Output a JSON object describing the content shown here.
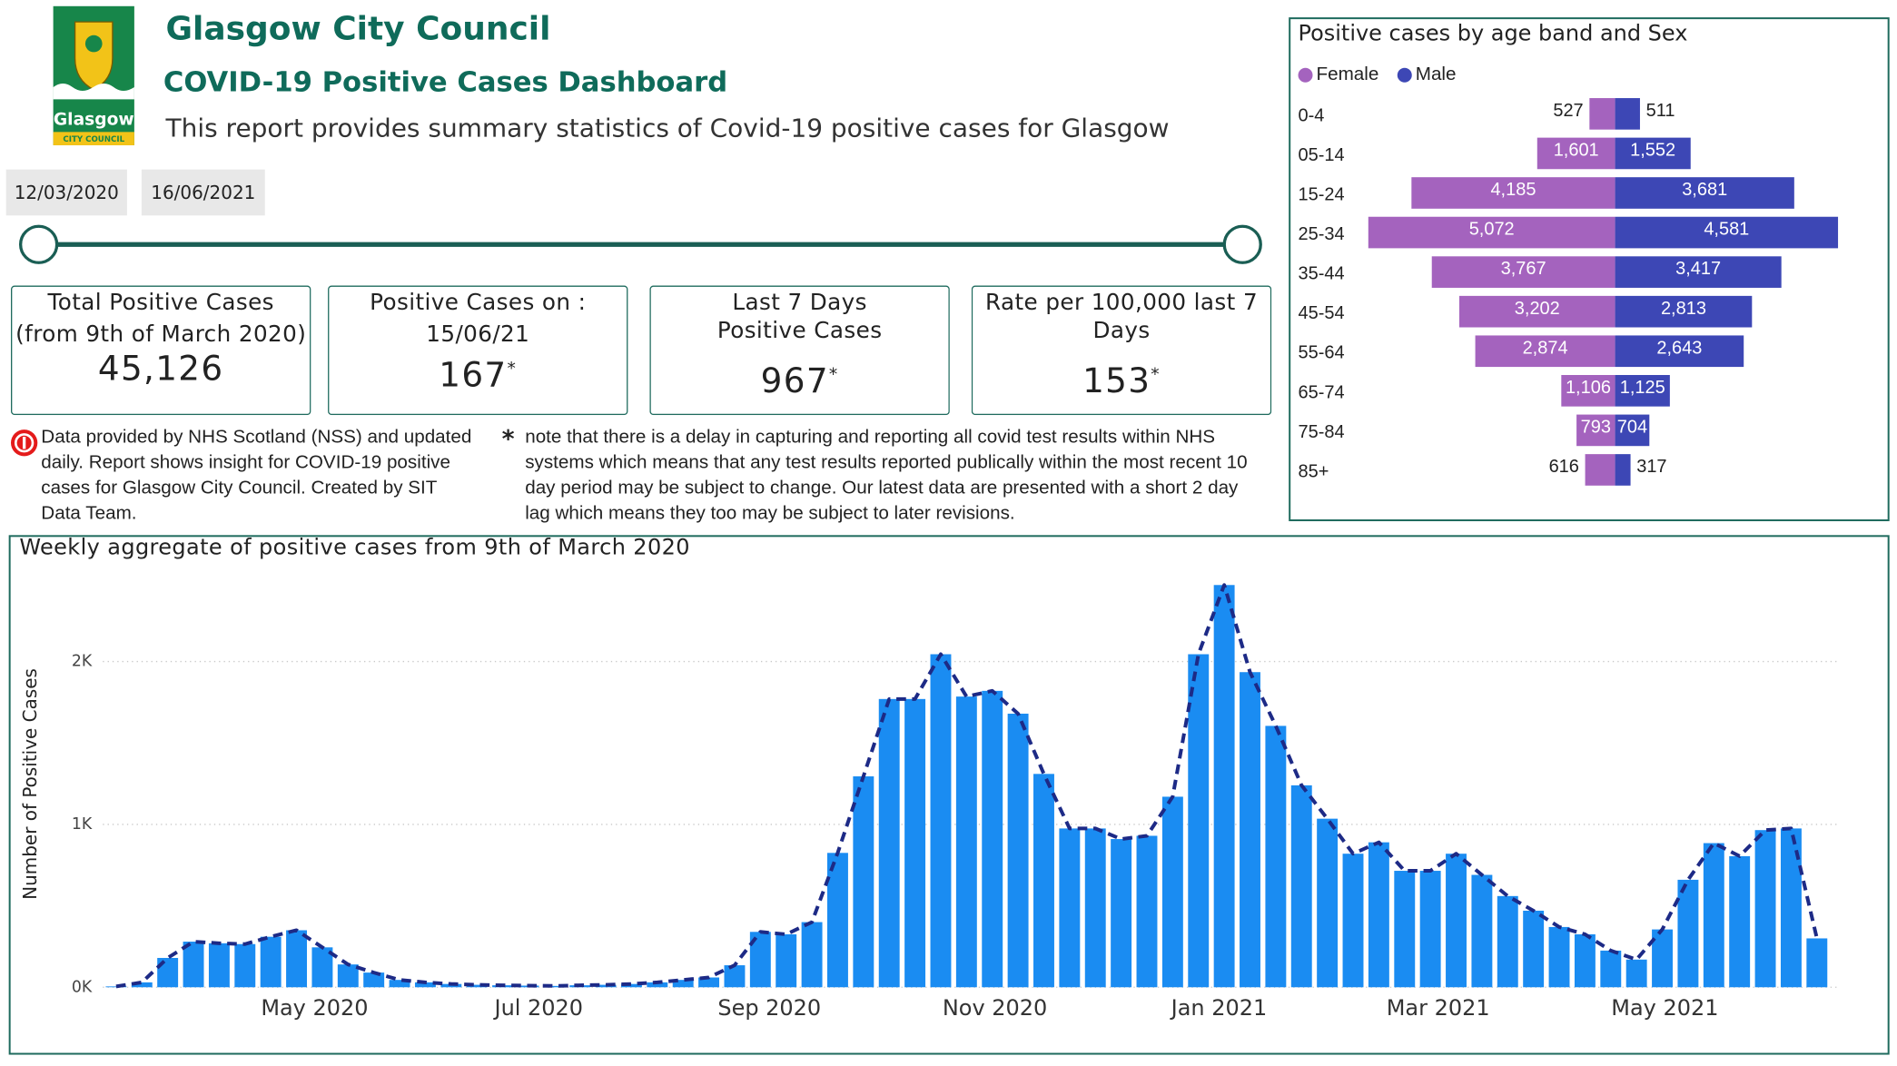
{
  "header": {
    "title": "Glasgow City Council",
    "subtitle": "COVID-19 Positive Cases Dashboard",
    "description": "This report provides summary statistics of Covid-19 positive cases for Glasgow",
    "logo_text": "Glasgow",
    "logo_subtext": "CITY COUNCIL"
  },
  "date_range": {
    "start": "12/03/2020",
    "end": "16/06/2021"
  },
  "cards": [
    {
      "title": "Total Positive Cases",
      "subtitle": "(from 9th of March 2020)",
      "value": 45126,
      "value_label": "45,126"
    },
    {
      "title": "Positive Cases on :",
      "subtitle": "15/06/21",
      "value": 167,
      "marker": "*"
    },
    {
      "title": "Last 7 Days Positive Cases",
      "value": 967,
      "marker": "*"
    },
    {
      "title": "Rate per 100,000 last 7 Days",
      "value": 153,
      "marker": "*"
    }
  ],
  "notes": {
    "source": "Data provided by NHS Scotland (NSS)  and updated daily. Report shows insight for COVID-19 positive cases for Glasgow City Council. Created by SIT Data Team.",
    "asterisk": "*",
    "delay": "note that there is a delay in capturing and reporting all covid test results within NHS systems which means that any test results reported publically within the most recent 10 day period may be subject to change. Our latest data are presented with a short 2 day lag which means they too may be subject to later revisions."
  },
  "chart_data": [
    {
      "type": "pyramid",
      "title": "Positive cases by age band and Sex",
      "categories": [
        "0-4",
        "05-14",
        "15-24",
        "25-34",
        "35-44",
        "45-54",
        "55-64",
        "65-74",
        "75-84",
        "85+"
      ],
      "series": [
        {
          "name": "Female",
          "color": "#a463be",
          "values": [
            527,
            1601,
            4185,
            5072,
            3767,
            3202,
            2874,
            1106,
            793,
            616
          ],
          "value_labels": [
            "527",
            "1,601",
            "4,185",
            "5,072",
            "3,767",
            "3,202",
            "2,874",
            "1,106",
            "793",
            "616"
          ]
        },
        {
          "name": "Male",
          "color": "#3d47b5",
          "values": [
            511,
            1552,
            3681,
            4581,
            3417,
            2813,
            2643,
            1125,
            704,
            317
          ],
          "value_labels": [
            "511",
            "1,552",
            "3,681",
            "4,581",
            "3,417",
            "2,813",
            "2,643",
            "1,125",
            "704",
            "317"
          ]
        }
      ]
    },
    {
      "type": "bar",
      "title": "Weekly aggregate of positive cases from 9th of March 2020",
      "y_label": "Number of Positive Cases",
      "categories": [
        null,
        null,
        null,
        null,
        null,
        null,
        null,
        null,
        null,
        null,
        null,
        null,
        null,
        null,
        null,
        null,
        null,
        null,
        null,
        null,
        null,
        null,
        null,
        null,
        null,
        null,
        null,
        null,
        null,
        null,
        null,
        null,
        null,
        null,
        null,
        null,
        null,
        null,
        null,
        null,
        null,
        null,
        null,
        null,
        null,
        null,
        null,
        null,
        null,
        null,
        null,
        null,
        null,
        null,
        null,
        null,
        null,
        null,
        null,
        null,
        null,
        null,
        null,
        null,
        null,
        null,
        null
      ],
      "values": [
        5,
        30,
        180,
        280,
        270,
        265,
        310,
        350,
        245,
        140,
        90,
        45,
        30,
        20,
        15,
        12,
        10,
        8,
        12,
        15,
        20,
        30,
        45,
        60,
        135,
        340,
        325,
        400,
        825,
        1295,
        1770,
        1770,
        2045,
        1785,
        1820,
        1680,
        1310,
        975,
        975,
        910,
        930,
        1170,
        2045,
        2470,
        1935,
        1605,
        1240,
        1035,
        820,
        890,
        715,
        715,
        820,
        690,
        560,
        470,
        370,
        325,
        225,
        170,
        355,
        660,
        885,
        805,
        965,
        975,
        300
      ],
      "color": "#1a8cf2",
      "line_color": "#1d2a86",
      "line_style": "dashed",
      "xticks": [
        {
          "value": 7.7,
          "label": "May 2020"
        },
        {
          "value": 16.4,
          "label": "Jul 2020"
        },
        {
          "value": 25.35,
          "label": "Sep 2020"
        },
        {
          "value": 34.1,
          "label": "Nov 2020"
        },
        {
          "value": 42.8,
          "label": "Jan 2021"
        },
        {
          "value": 51.3,
          "label": "Mar 2021"
        },
        {
          "value": 60.1,
          "label": "May 2021"
        }
      ],
      "ylim": [
        0,
        2600
      ],
      "yticks": [
        {
          "value": 0,
          "label": "0K"
        },
        {
          "value": 1000,
          "label": "1K"
        },
        {
          "value": 2000,
          "label": "2K"
        }
      ],
      "grid": true
    }
  ]
}
